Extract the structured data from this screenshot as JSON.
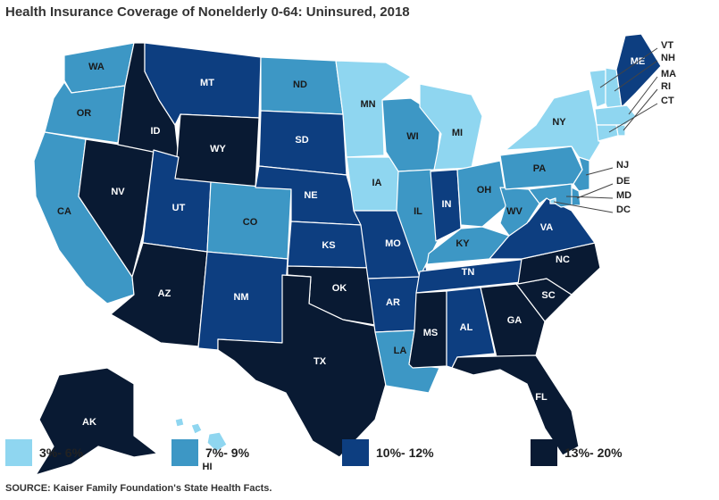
{
  "title": "Health Insurance Coverage of Nonelderly 0-64: Uninsured, 2018",
  "source": "SOURCE: Kaiser Family Foundation's State Health Facts.",
  "legend": [
    {
      "label": "3%- 6%",
      "color": "#8fd6f0"
    },
    {
      "label": "7%- 9%",
      "color": "#3d97c5"
    },
    {
      "label": "10%- 12%",
      "color": "#0d3e80"
    },
    {
      "label": "13%- 20%",
      "color": "#091a33"
    }
  ],
  "states": {
    "WA": 1,
    "OR": 1,
    "CA": 1,
    "NV": 3,
    "ID": 3,
    "MT": 2,
    "WY": 3,
    "UT": 2,
    "AZ": 3,
    "CO": 1,
    "NM": 2,
    "ND": 1,
    "SD": 2,
    "NE": 2,
    "KS": 2,
    "OK": 3,
    "TX": 3,
    "MN": 0,
    "IA": 0,
    "MO": 2,
    "AR": 2,
    "LA": 1,
    "WI": 1,
    "IL": 1,
    "MI": 0,
    "IN": 2,
    "OH": 1,
    "KY": 1,
    "TN": 2,
    "MS": 3,
    "AL": 2,
    "GA": 3,
    "FL": 3,
    "SC": 3,
    "NC": 3,
    "VA": 2,
    "WV": 1,
    "PA": 1,
    "NY": 0,
    "VT": 0,
    "NH": 0,
    "ME": 2,
    "MA": 0,
    "RI": 0,
    "CT": 0,
    "NJ": 1,
    "DE": 1,
    "MD": 1,
    "DC": 0,
    "AK": 3,
    "HI": 0
  },
  "labels": {
    "WA": "WA",
    "OR": "OR",
    "CA": "CA",
    "NV": "NV",
    "ID": "ID",
    "MT": "MT",
    "WY": "WY",
    "UT": "UT",
    "AZ": "AZ",
    "CO": "CO",
    "NM": "NM",
    "ND": "ND",
    "SD": "SD",
    "NE": "NE",
    "KS": "KS",
    "OK": "OK",
    "TX": "TX",
    "MN": "MN",
    "IA": "IA",
    "MO": "MO",
    "AR": "AR",
    "LA": "LA",
    "WI": "WI",
    "IL": "IL",
    "MI": "MI",
    "IN": "IN",
    "OH": "OH",
    "KY": "KY",
    "TN": "TN",
    "MS": "MS",
    "AL": "AL",
    "GA": "GA",
    "FL": "FL",
    "SC": "SC",
    "NC": "NC",
    "VA": "VA",
    "WV": "WV",
    "PA": "PA",
    "NY": "NY",
    "VT": "VT",
    "NH": "NH",
    "ME": "ME",
    "MA": "MA",
    "RI": "RI",
    "CT": "CT",
    "NJ": "NJ",
    "DE": "DE",
    "MD": "MD",
    "DC": "DC",
    "AK": "AK",
    "HI": "HI"
  }
}
